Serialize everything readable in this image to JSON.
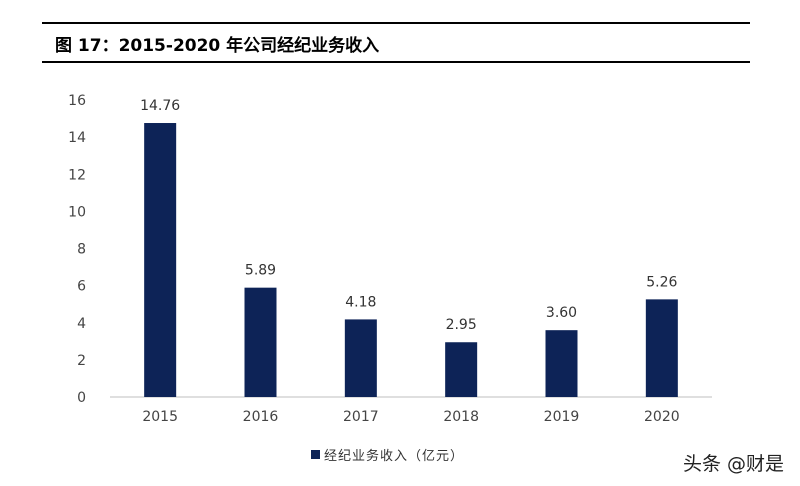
{
  "figure": {
    "title": "图 17：2015-2020 年公司经纪业务收入"
  },
  "chart_data": {
    "type": "bar",
    "categories": [
      "2015",
      "2016",
      "2017",
      "2018",
      "2019",
      "2020"
    ],
    "series": [
      {
        "name": "经纪业务收入（亿元）",
        "values": [
          14.76,
          5.89,
          4.18,
          2.95,
          3.6,
          5.26
        ],
        "labels": [
          "14.76",
          "5.89",
          "4.18",
          "2.95",
          "3.60",
          "5.26"
        ]
      }
    ],
    "ylim": [
      0,
      16
    ],
    "yticks": [
      "0",
      "2",
      "4",
      "6",
      "8",
      "10",
      "12",
      "14",
      "16"
    ],
    "grid": false,
    "legend_position": "bottom-center",
    "bar_color": "#0d2357",
    "axis_color": "#bfbfbf"
  },
  "watermark": "头条 @财是"
}
